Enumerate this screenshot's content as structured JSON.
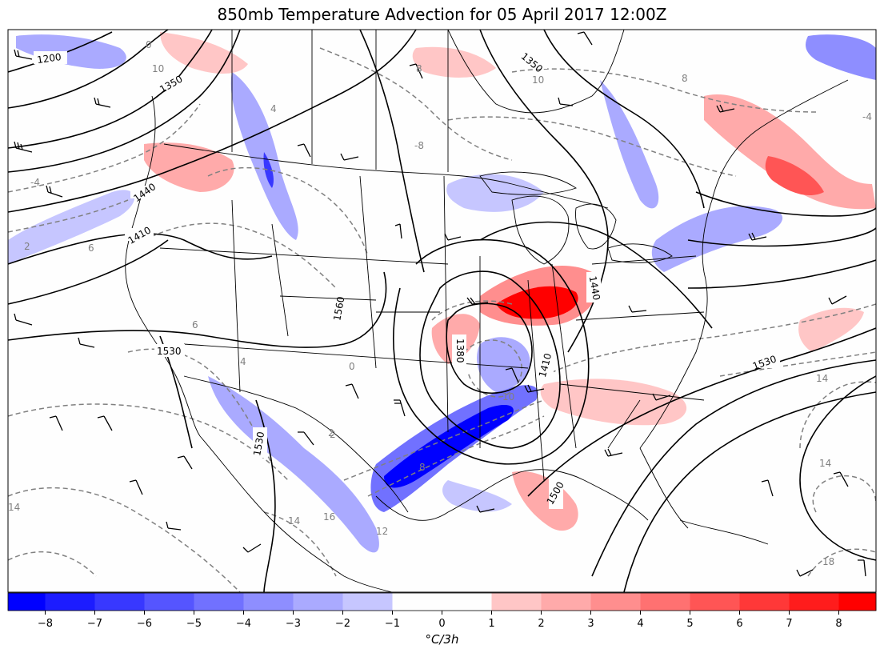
{
  "title": "850mb Temperature Advection for 05 April 2017 12:00Z",
  "colorbar": {
    "label": "°C/3h",
    "ticks": [
      "−8",
      "−7",
      "−6",
      "−5",
      "−4",
      "−3",
      "−2",
      "−1",
      "0",
      "1",
      "2",
      "3",
      "4",
      "5",
      "6",
      "7",
      "8"
    ],
    "levels": [
      -9,
      -8,
      -7,
      -6,
      -5,
      -4,
      -3,
      -2,
      -1,
      1,
      2,
      3,
      4,
      5,
      6,
      7,
      8,
      9
    ],
    "colors": [
      "#0000ff",
      "#1c1cff",
      "#3838ff",
      "#5555ff",
      "#7171ff",
      "#8e8eff",
      "#aaaaff",
      "#c6c6ff",
      "#fefefe",
      "#ffc6c6",
      "#ffaaaa",
      "#ff8e8e",
      "#ff7171",
      "#ff5555",
      "#ff3838",
      "#ff1c1c",
      "#ff0000"
    ]
  },
  "height_contour_labels": [
    "1200",
    "1350",
    "1350",
    "1440",
    "1410",
    "1530",
    "1560",
    "1380",
    "1440",
    "1410",
    "1530",
    "1530",
    "1500"
  ],
  "temperature_contour_labels": [
    "0",
    "10",
    "-4",
    "2",
    "4",
    "6",
    "2",
    "4",
    "6",
    "-8",
    "10",
    "8",
    "-4",
    "0",
    "8",
    "14",
    "14",
    "14",
    "16",
    "12",
    "14",
    "18",
    "8",
    "10",
    "2"
  ],
  "colors": {
    "height_contour": "#000000",
    "temperature_contour": "#808080",
    "border": "#000000"
  }
}
